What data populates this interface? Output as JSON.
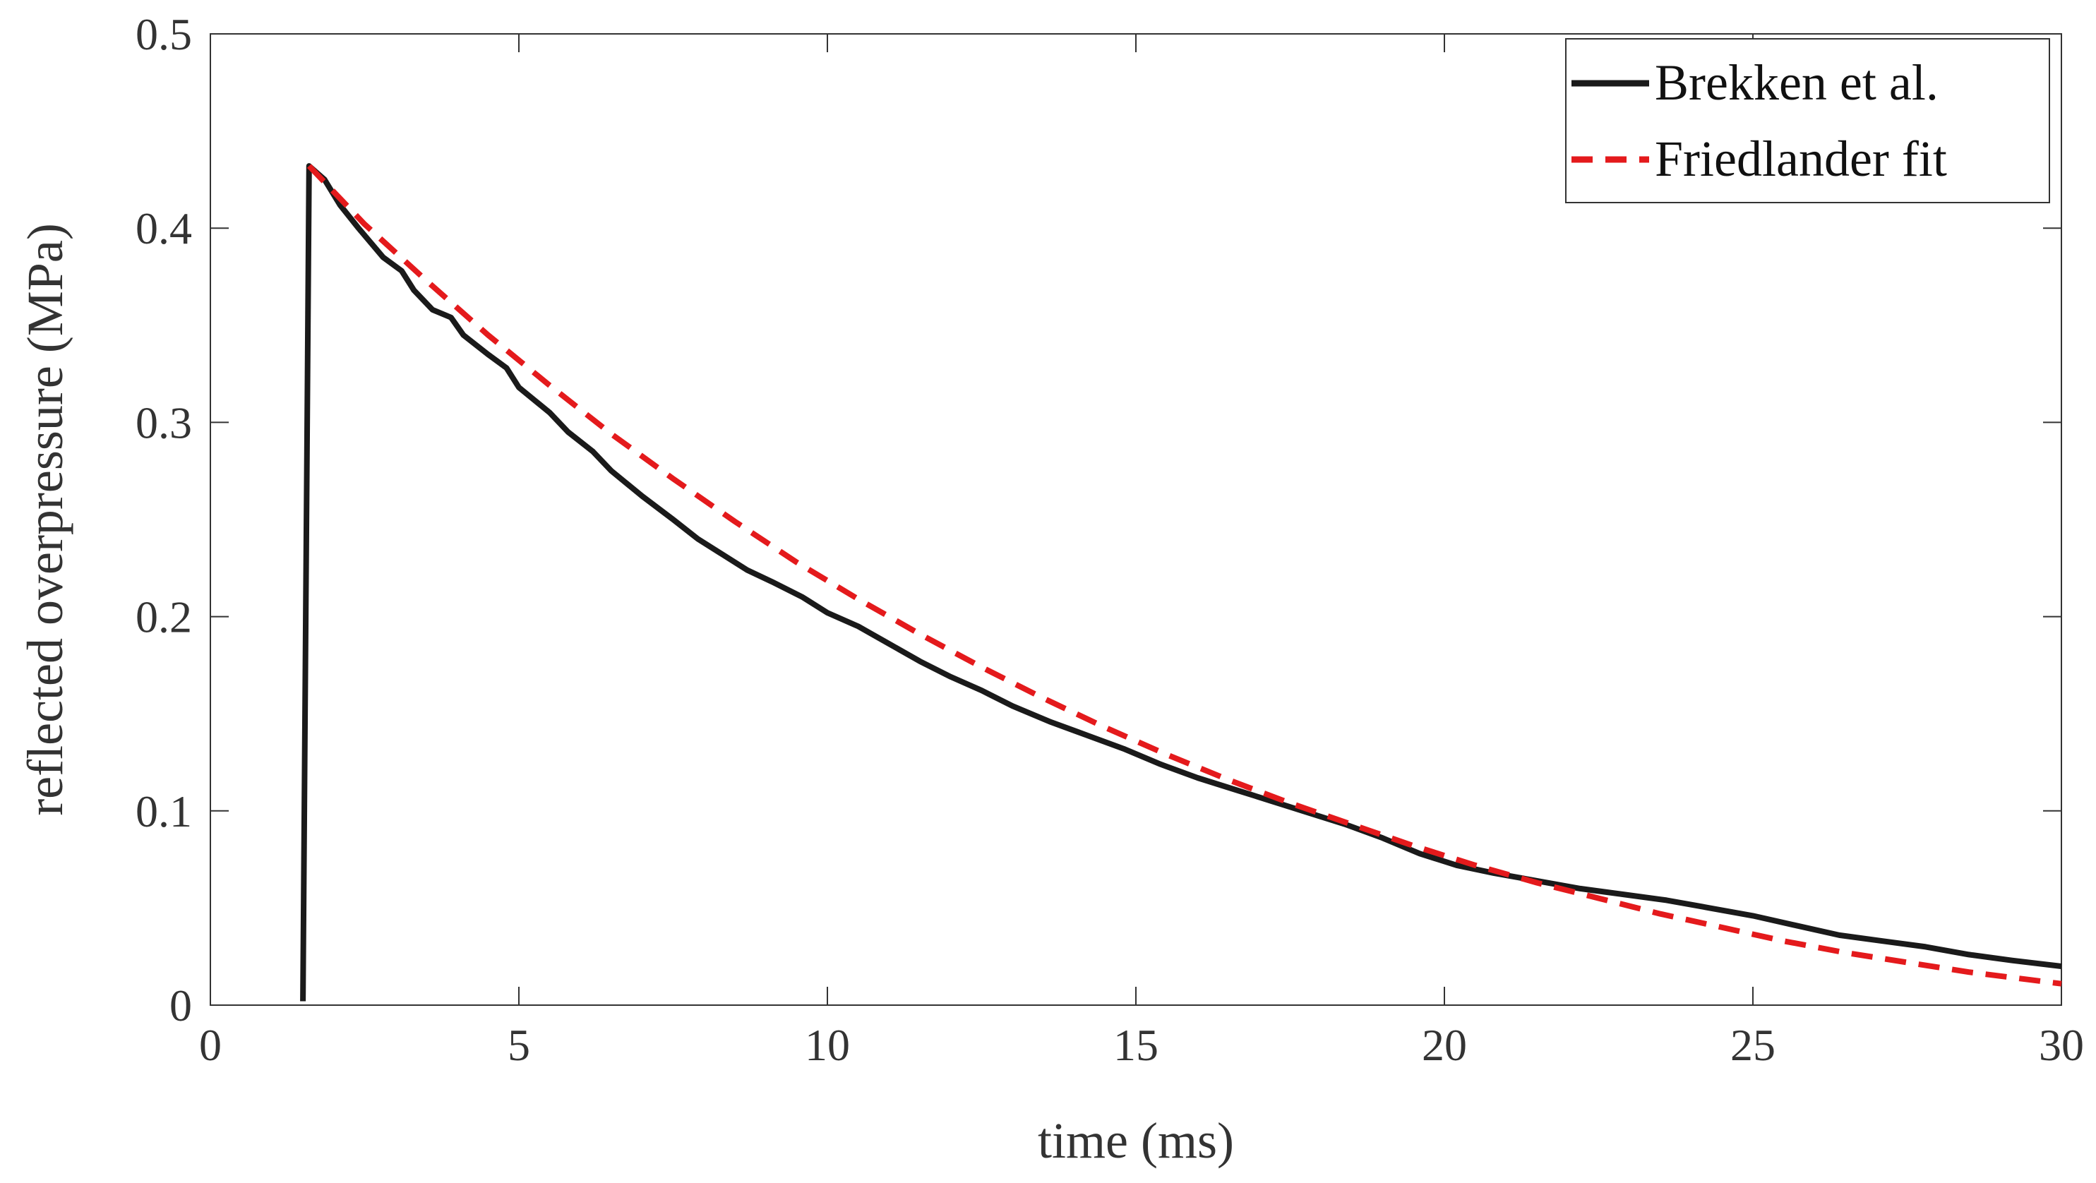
{
  "chart_data": {
    "type": "line",
    "xlabel": "time (ms)",
    "ylabel": "reflected overpressure (MPa)",
    "xlim": [
      0,
      30
    ],
    "ylim": [
      0,
      0.5
    ],
    "xticks": [
      0,
      5,
      10,
      15,
      20,
      25,
      30
    ],
    "xtick_labels": [
      "0",
      "5",
      "10",
      "15",
      "20",
      "25",
      "30"
    ],
    "yticks": [
      0,
      0.1,
      0.2,
      0.3,
      0.4,
      0.5
    ],
    "ytick_labels": [
      "0",
      "0.1",
      "0.2",
      "0.3",
      "0.4",
      "0.5"
    ],
    "grid": false,
    "legend_position": "top-right",
    "series": [
      {
        "name": "Brekken et al.",
        "color": "#1a1a1a",
        "style": "solid",
        "x": [
          1.5,
          1.6,
          1.85,
          2.1,
          2.4,
          2.8,
          3.1,
          3.3,
          3.6,
          3.9,
          4.1,
          4.5,
          4.8,
          5.0,
          5.5,
          5.8,
          6.2,
          6.5,
          7.0,
          7.5,
          7.9,
          8.3,
          8.7,
          9.1,
          9.6,
          10.0,
          10.5,
          11.0,
          11.5,
          12.0,
          12.5,
          13.0,
          13.6,
          14.2,
          14.8,
          15.4,
          16.0,
          16.6,
          17.2,
          17.8,
          18.4,
          19.0,
          19.6,
          20.2,
          20.8,
          21.5,
          22.2,
          22.9,
          23.6,
          24.3,
          25.0,
          25.7,
          26.4,
          27.1,
          27.8,
          28.5,
          29.2,
          30.0
        ],
        "y": [
          0.002,
          0.432,
          0.425,
          0.412,
          0.4,
          0.385,
          0.378,
          0.368,
          0.358,
          0.354,
          0.345,
          0.335,
          0.328,
          0.318,
          0.305,
          0.295,
          0.285,
          0.275,
          0.262,
          0.25,
          0.24,
          0.232,
          0.224,
          0.218,
          0.21,
          0.202,
          0.195,
          0.186,
          0.177,
          0.169,
          0.162,
          0.154,
          0.146,
          0.139,
          0.132,
          0.124,
          0.117,
          0.111,
          0.105,
          0.099,
          0.093,
          0.086,
          0.078,
          0.072,
          0.068,
          0.064,
          0.06,
          0.057,
          0.054,
          0.05,
          0.046,
          0.041,
          0.036,
          0.033,
          0.03,
          0.026,
          0.023,
          0.02
        ]
      },
      {
        "name": "Friedlander fit",
        "color": "#e41a1c",
        "style": "dashed",
        "x": [
          1.6,
          2.5,
          3.5,
          4.5,
          5.5,
          6.5,
          7.5,
          8.5,
          9.5,
          10.5,
          11.5,
          12.5,
          13.5,
          14.5,
          15.5,
          16.5,
          17.5,
          18.5,
          19.5,
          20.5,
          21.5,
          22.5,
          23.5,
          24.5,
          25.5,
          26.5,
          27.5,
          28.5,
          29.5,
          30.0
        ],
        "y": [
          0.432,
          0.402,
          0.373,
          0.345,
          0.319,
          0.294,
          0.271,
          0.249,
          0.228,
          0.209,
          0.191,
          0.174,
          0.158,
          0.143,
          0.129,
          0.116,
          0.104,
          0.093,
          0.082,
          0.072,
          0.063,
          0.055,
          0.047,
          0.04,
          0.033,
          0.027,
          0.022,
          0.017,
          0.013,
          0.011
        ]
      }
    ]
  }
}
